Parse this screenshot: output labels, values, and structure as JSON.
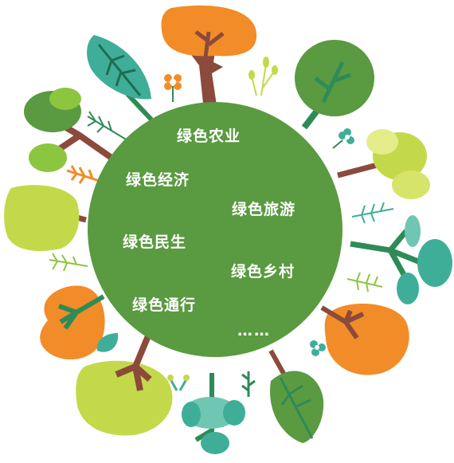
{
  "theme": {
    "circle_color": "#5a9a41",
    "orange": "#f28c28",
    "teal": "#3fae98",
    "lime": "#c4d94a",
    "light_green": "#8cc63f",
    "trunk": "#8b4a3c",
    "dark_green": "#2e8b57"
  },
  "circle": {
    "items": [
      "绿色农业",
      "绿色经济",
      "绿色旅游",
      "绿色民生",
      "绿色乡村",
      "绿色通行",
      "……"
    ]
  }
}
